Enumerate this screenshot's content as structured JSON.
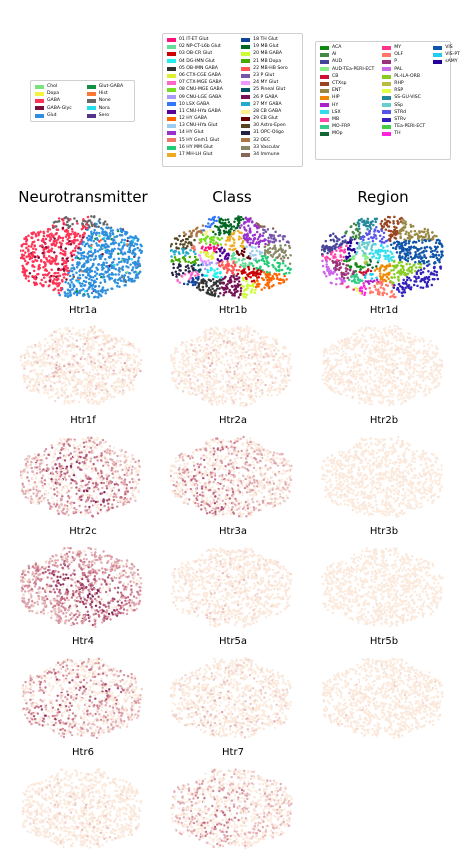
{
  "legends": {
    "neurotransmitter": {
      "rows": 5,
      "items": [
        {
          "label": "Chol",
          "color": "#7fe07f"
        },
        {
          "label": "Dopa",
          "color": "#f4f440"
        },
        {
          "label": "GABA",
          "color": "#ff3355"
        },
        {
          "label": "GABA-Glyc",
          "color": "#7a0f3a"
        },
        {
          "label": "Glut",
          "color": "#2d8fdd"
        },
        {
          "label": "Glut-GABA",
          "color": "#109040"
        },
        {
          "label": "Hist",
          "color": "#ff7733"
        },
        {
          "label": "None",
          "color": "#666666"
        },
        {
          "label": "Nora",
          "color": "#22e0ee"
        },
        {
          "label": "Sero",
          "color": "#553388"
        }
      ]
    },
    "class": {
      "rows": 17,
      "items": [
        {
          "label": "01 IT-ET Glut",
          "color": "#ff1177"
        },
        {
          "label": "02 NP-CT-L6b Glut",
          "color": "#66dd99"
        },
        {
          "label": "03 OB-CR Glut",
          "color": "#cc0000"
        },
        {
          "label": "04 DG-IMN Glut",
          "color": "#22eeee"
        },
        {
          "label": "05 OB-IMN GABA",
          "color": "#333333"
        },
        {
          "label": "06 CTX-CGE GABA",
          "color": "#ddee33"
        },
        {
          "label": "07 CTX-MGE GABA",
          "color": "#ff66cc"
        },
        {
          "label": "08 CNU-MGE GABA",
          "color": "#77dd22"
        },
        {
          "label": "09 CNU-LGE GABA",
          "color": "#aa99ff"
        },
        {
          "label": "10 LSX GABA",
          "color": "#3377ff"
        },
        {
          "label": "11 CNU-HYa GABA",
          "color": "#550099"
        },
        {
          "label": "12 HY GABA",
          "color": "#ff6600"
        },
        {
          "label": "13 CNU-HYa Glut",
          "color": "#99ccee"
        },
        {
          "label": "14 HY Glut",
          "color": "#9933cc"
        },
        {
          "label": "15 HY Gnrh1 Glut",
          "color": "#ee7766"
        },
        {
          "label": "16 HY MM Glut",
          "color": "#22cc77"
        },
        {
          "label": "17 MH-LH Glut",
          "color": "#eeaa22"
        },
        {
          "label": "18 TH Glut",
          "color": "#114499"
        },
        {
          "label": "19 MB Glut",
          "color": "#006622"
        },
        {
          "label": "20 MB GABA",
          "color": "#ccff33"
        },
        {
          "label": "21 MB Dopa",
          "color": "#44aa00"
        },
        {
          "label": "22 MB-HB Sero",
          "color": "#ff5555"
        },
        {
          "label": "23 P Glut",
          "color": "#7755aa"
        },
        {
          "label": "24 MY Glut",
          "color": "#ee99ff"
        },
        {
          "label": "25 Pineal Glut",
          "color": "#005566"
        },
        {
          "label": "26 P GABA",
          "color": "#771155"
        },
        {
          "label": "27 MY GABA",
          "color": "#22aacc"
        },
        {
          "label": "28 CB GABA",
          "color": "#ffee88"
        },
        {
          "label": "29 CB Glut",
          "color": "#660000"
        },
        {
          "label": "30 Astro-Epen",
          "color": "#554422"
        },
        {
          "label": "31 OPC-Oligo",
          "color": "#222244"
        },
        {
          "label": "32 OEC",
          "color": "#aa7744"
        },
        {
          "label": "33 Vascular",
          "color": "#888866"
        },
        {
          "label": "34 Immune",
          "color": "#886655"
        }
      ]
    },
    "region": {
      "rows": 13,
      "items": [
        {
          "label": "ACA",
          "color": "#118811"
        },
        {
          "label": "AI",
          "color": "#448844"
        },
        {
          "label": "AUD",
          "color": "#444499"
        },
        {
          "label": "AUD-TEa-PERI-ECT",
          "color": "#88ee88"
        },
        {
          "label": "CB",
          "color": "#cc1133"
        },
        {
          "label": "CTXsp",
          "color": "#994422"
        },
        {
          "label": "ENT",
          "color": "#998844"
        },
        {
          "label": "HIP",
          "color": "#ee8800"
        },
        {
          "label": "HY",
          "color": "#aa22cc"
        },
        {
          "label": "LSX",
          "color": "#33ddee"
        },
        {
          "label": "MB",
          "color": "#ff44aa"
        },
        {
          "label": "MO-FRP",
          "color": "#33cc88"
        },
        {
          "label": "MOp",
          "color": "#116633"
        },
        {
          "label": "MY",
          "color": "#ff3388"
        },
        {
          "label": "OLF",
          "color": "#ff7766"
        },
        {
          "label": "P",
          "color": "#993377"
        },
        {
          "label": "PAL",
          "color": "#cc66ee"
        },
        {
          "label": "PL-ILA-ORB",
          "color": "#88cc22"
        },
        {
          "label": "RHP",
          "color": "#bbbb44"
        },
        {
          "label": "RSP",
          "color": "#ddff44"
        },
        {
          "label": "SS-GU-VISC",
          "color": "#228899"
        },
        {
          "label": "SSp",
          "color": "#66cccc"
        },
        {
          "label": "STRd",
          "color": "#5555ee"
        },
        {
          "label": "STRv",
          "color": "#3322bb"
        },
        {
          "label": "TEa-PERI-ECT",
          "color": "#44cc44"
        },
        {
          "label": "TH",
          "color": "#ff22dd"
        },
        {
          "label": "VIS",
          "color": "#1155aa"
        },
        {
          "label": "VIS-PTLp",
          "color": "#22ccee"
        },
        {
          "label": "sAMY",
          "color": "#220099"
        }
      ]
    }
  },
  "chart_data": {
    "type": "scatter",
    "column_titles": [
      "Neurotransmitter",
      "Class",
      "Region"
    ],
    "colormap": {
      "low": "#fbe9dc",
      "mid": "#c9738a",
      "high": "#6b0f4a"
    },
    "panels": [
      {
        "title": "Htr1a",
        "expression_level": 0.15
      },
      {
        "title": "Htr1b",
        "expression_level": 0.14
      },
      {
        "title": "Htr1d",
        "expression_level": 0.05
      },
      {
        "title": "Htr1f",
        "expression_level": 0.45
      },
      {
        "title": "Htr2a",
        "expression_level": 0.35
      },
      {
        "title": "Htr2b",
        "expression_level": 0.03
      },
      {
        "title": "Htr2c",
        "expression_level": 0.65
      },
      {
        "title": "Htr3a",
        "expression_level": 0.1
      },
      {
        "title": "Htr3b",
        "expression_level": 0.02
      },
      {
        "title": "Htr4",
        "expression_level": 0.4
      },
      {
        "title": "Htr5a",
        "expression_level": 0.15
      },
      {
        "title": "Htr5b",
        "expression_level": 0.06
      },
      {
        "title": "Htr6",
        "expression_level": 0.1
      },
      {
        "title": "Htr7",
        "expression_level": 0.3
      }
    ]
  }
}
